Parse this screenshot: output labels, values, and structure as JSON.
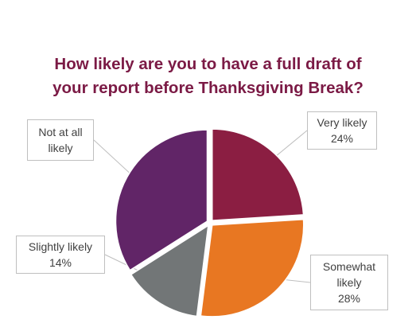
{
  "chart_data": {
    "type": "pie",
    "title": "How likely are you to have a full draft of your report before Thanksgiving Break?",
    "title_lines": [
      "How likely are you to have a full draft of",
      "your report before Thanksgiving Break?"
    ],
    "slices": [
      {
        "label": "Very likely",
        "value": 24,
        "value_label": "24%",
        "color": "#8b1e42",
        "label_lines": [
          "Very likely"
        ]
      },
      {
        "label": "Somewhat likely",
        "value": 28,
        "value_label": "28%",
        "color": "#e87722",
        "label_lines": [
          "Somewhat",
          "likely"
        ]
      },
      {
        "label": "Slightly likely",
        "value": 14,
        "value_label": "14%",
        "color": "#727677",
        "label_lines": [
          "Slightly likely"
        ]
      },
      {
        "label": "Not at all likely",
        "value": 34,
        "value_label": "",
        "color": "#612567",
        "label_lines": [
          "Not at all",
          "likely"
        ]
      }
    ],
    "start_angle_deg": 0,
    "direction": "clockwise",
    "exploded": true,
    "legend": "none",
    "data_labels": "callouts"
  }
}
